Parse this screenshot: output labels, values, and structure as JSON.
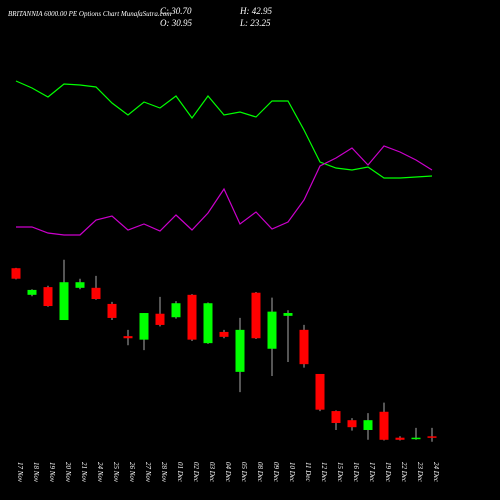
{
  "chart_data": {
    "type": "candlestick",
    "title": "BRITANNIA 6000.00 PE Options Chart MunafaSutra.com",
    "ohlc_labels": {
      "close": "C: 30.70",
      "open": "O: 30.95",
      "high": "H: 42.95",
      "low": "L: 23.25"
    },
    "categories": [
      "17 Nov",
      "18 Nov",
      "19 Nov",
      "20 Nov",
      "21 Nov",
      "24 Nov",
      "25 Nov",
      "26 Nov",
      "27 Nov",
      "28 Nov",
      "01 Dec",
      "02 Dec",
      "03 Dec",
      "04 Dec",
      "05 Dec",
      "08 Dec",
      "09 Dec",
      "10 Dec",
      "11 Dec",
      "12 Dec",
      "15 Dec",
      "16 Dec",
      "17 Dec",
      "19 Dec",
      "22 Dec",
      "23 Dec",
      "24 Dec"
    ],
    "open": [
      271,
      233,
      244,
      197,
      243,
      243,
      220,
      174,
      169,
      206,
      201,
      233,
      164,
      180,
      123,
      236,
      156,
      203,
      183,
      120,
      67,
      54,
      40,
      66,
      29,
      28,
      30.95
    ],
    "high": [
      271.5,
      241,
      246,
      283,
      256,
      260,
      223,
      183,
      207,
      230,
      224,
      234,
      222,
      183,
      200,
      237,
      229,
      211,
      190,
      120,
      68,
      57,
      64,
      79,
      31,
      43,
      42.95
    ],
    "low": [
      255,
      231,
      216,
      197,
      241,
      226,
      197,
      161,
      154,
      188,
      199,
      167,
      163,
      171,
      94,
      170,
      117,
      137,
      129,
      67,
      40,
      39,
      26,
      25,
      25,
      26,
      23.25
    ],
    "close": [
      256,
      240,
      217,
      251,
      251,
      227,
      200,
      171,
      207,
      190,
      221,
      169,
      221,
      173,
      183,
      171,
      209,
      207,
      134,
      69,
      50,
      44,
      54,
      26,
      26,
      29,
      30.7
    ],
    "ylim": [
      0,
      297
    ],
    "up_color": "#00ff00",
    "down_color": "#ff0000",
    "indicators": {
      "ylim": [
        0,
        100
      ],
      "series": [
        {
          "color": "#00ff00",
          "values": [
            89.5,
            86,
            81.5,
            88,
            87.5,
            86.5,
            78.5,
            72.5,
            79,
            76,
            82,
            71,
            82,
            72.5,
            74,
            71.5,
            79.5,
            79.5,
            65,
            49,
            46,
            45,
            46.5,
            41,
            41,
            41.5,
            42
          ]
        },
        {
          "color": "#cc00cc",
          "values": [
            16.5,
            16.5,
            13.5,
            12.5,
            12.5,
            20,
            22,
            15,
            18,
            14.5,
            22.5,
            15,
            23.5,
            35.5,
            18,
            24,
            15.5,
            19,
            30,
            47,
            51,
            56,
            47.5,
            57,
            54,
            50,
            45
          ]
        }
      ]
    }
  }
}
